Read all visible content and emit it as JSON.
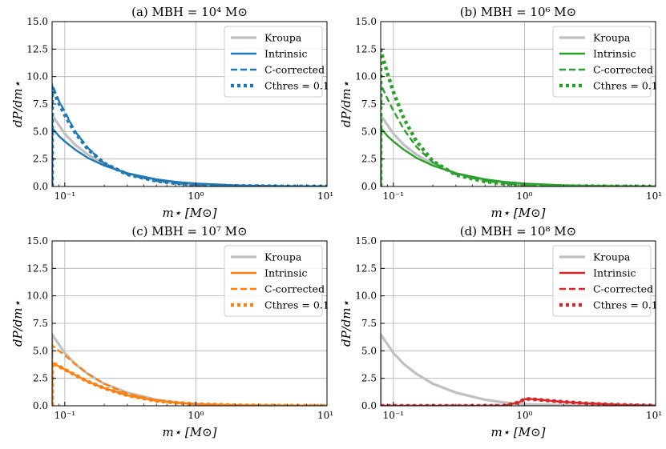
{
  "figure": {
    "ylabel": "dP/dm⋆",
    "xlabel": "m⋆ [M⊙]",
    "x_tick_labels": [
      "10⁻¹",
      "10⁰",
      "10¹"
    ],
    "y_tick_labels": [
      "0.0",
      "2.5",
      "5.0",
      "7.5",
      "10.0",
      "12.5",
      "15.0"
    ],
    "colors": {
      "kroupa": "#c0c0c0",
      "blue": "#1f77b4",
      "green": "#2ca02c",
      "orange": "#ff7f0e",
      "red": "#d62728"
    },
    "legend_labels": [
      "Kroupa",
      "Intrinsic",
      "C-corrected",
      "Cthres = 0.1"
    ]
  },
  "chart_data": [
    {
      "type": "line",
      "title": "(a) MBH = 10⁴ M⊙",
      "xscale": "log",
      "xlim": [
        0.08,
        10
      ],
      "ylim": [
        0,
        15
      ],
      "grid": true,
      "legend": "top-right",
      "color": "#1f77b4",
      "x": [
        0.08,
        0.09,
        0.1,
        0.12,
        0.15,
        0.2,
        0.3,
        0.5,
        0.7,
        1,
        2,
        5,
        10
      ],
      "series": [
        {
          "name": "Kroupa",
          "values": [
            6.5,
            5.6,
            4.8,
            3.8,
            2.9,
            2.0,
            1.2,
            0.55,
            0.3,
            0.15,
            0.05,
            0.01,
            0.0
          ]
        },
        {
          "name": "Intrinsic",
          "values": [
            5.3,
            4.6,
            4.1,
            3.35,
            2.6,
            1.9,
            1.2,
            0.65,
            0.42,
            0.27,
            0.1,
            0.02,
            0.0
          ]
        },
        {
          "name": "C-corrected",
          "values": [
            9.3,
            7.8,
            6.8,
            5.0,
            3.5,
            2.1,
            1.1,
            0.5,
            0.3,
            0.15,
            0.05,
            0.01,
            0.0
          ]
        },
        {
          "name": "Cthres = 0.1",
          "values": [
            9.0,
            7.6,
            6.5,
            4.9,
            3.4,
            2.1,
            1.1,
            0.5,
            0.3,
            0.15,
            0.05,
            0.01,
            0.0
          ]
        }
      ]
    },
    {
      "type": "line",
      "title": "(b) MBH = 10⁶ M⊙",
      "xscale": "log",
      "xlim": [
        0.08,
        10
      ],
      "ylim": [
        0,
        15
      ],
      "grid": true,
      "legend": "top-right",
      "color": "#2ca02c",
      "x": [
        0.08,
        0.09,
        0.1,
        0.12,
        0.15,
        0.2,
        0.3,
        0.5,
        0.7,
        1,
        2,
        5,
        10
      ],
      "series": [
        {
          "name": "Kroupa",
          "values": [
            6.5,
            5.6,
            4.8,
            3.8,
            2.9,
            2.0,
            1.2,
            0.55,
            0.3,
            0.15,
            0.05,
            0.01,
            0.0
          ]
        },
        {
          "name": "Intrinsic",
          "values": [
            5.3,
            4.6,
            4.1,
            3.35,
            2.6,
            1.9,
            1.2,
            0.65,
            0.42,
            0.27,
            0.1,
            0.02,
            0.0
          ]
        },
        {
          "name": "C-corrected",
          "values": [
            9.3,
            8.0,
            6.9,
            5.2,
            3.6,
            2.2,
            1.1,
            0.5,
            0.3,
            0.15,
            0.05,
            0.01,
            0.0
          ]
        },
        {
          "name": "Cthres = 0.1",
          "values": [
            12.4,
            10.3,
            8.6,
            6.2,
            4.1,
            2.3,
            1.05,
            0.45,
            0.25,
            0.12,
            0.04,
            0.01,
            0.0
          ]
        }
      ]
    },
    {
      "type": "line",
      "title": "(c) MBH = 10⁷ M⊙",
      "xscale": "log",
      "xlim": [
        0.08,
        10
      ],
      "ylim": [
        0,
        15
      ],
      "grid": true,
      "legend": "top-right",
      "color": "#ff7f0e",
      "x": [
        0.08,
        0.09,
        0.1,
        0.12,
        0.15,
        0.2,
        0.3,
        0.5,
        0.7,
        1,
        2,
        5,
        10
      ],
      "series": [
        {
          "name": "Kroupa",
          "values": [
            6.5,
            5.6,
            4.8,
            3.8,
            2.9,
            2.0,
            1.2,
            0.55,
            0.3,
            0.15,
            0.05,
            0.01,
            0.0
          ]
        },
        {
          "name": "Intrinsic",
          "values": [
            3.9,
            3.6,
            3.3,
            2.8,
            2.2,
            1.6,
            0.95,
            0.45,
            0.28,
            0.15,
            0.05,
            0.01,
            0.0
          ]
        },
        {
          "name": "C-corrected",
          "values": [
            5.5,
            5.0,
            4.6,
            3.8,
            2.9,
            2.0,
            1.1,
            0.5,
            0.3,
            0.15,
            0.05,
            0.01,
            0.0
          ]
        },
        {
          "name": "Cthres = 0.1",
          "values": [
            3.9,
            3.6,
            3.3,
            2.8,
            2.2,
            1.6,
            0.95,
            0.45,
            0.28,
            0.15,
            0.05,
            0.01,
            0.0
          ]
        }
      ]
    },
    {
      "type": "line",
      "title": "(d) MBH = 10⁸ M⊙",
      "xscale": "log",
      "xlim": [
        0.08,
        10
      ],
      "ylim": [
        0,
        15
      ],
      "grid": true,
      "legend": "top-right",
      "color": "#d62728",
      "x": [
        0.08,
        0.09,
        0.1,
        0.12,
        0.15,
        0.2,
        0.3,
        0.5,
        0.7,
        0.9,
        1.0,
        1.1,
        1.3,
        1.6,
        2,
        3,
        5,
        7,
        10
      ],
      "series": [
        {
          "name": "Kroupa",
          "values": [
            6.5,
            5.6,
            4.8,
            3.8,
            2.9,
            2.0,
            1.2,
            0.55,
            0.3,
            0.18,
            0.15,
            0.13,
            0.1,
            0.08,
            0.05,
            0.03,
            0.01,
            0.005,
            0.0
          ]
        },
        {
          "name": "Intrinsic",
          "values": [
            0,
            0,
            0,
            0,
            0,
            0,
            0,
            0,
            0,
            0.3,
            0.6,
            0.62,
            0.55,
            0.45,
            0.35,
            0.22,
            0.1,
            0.05,
            0.02
          ]
        },
        {
          "name": "C-corrected",
          "values": [
            0,
            0,
            0,
            0,
            0,
            0,
            0,
            0,
            0,
            0.3,
            0.6,
            0.62,
            0.55,
            0.45,
            0.35,
            0.22,
            0.1,
            0.05,
            0.02
          ]
        },
        {
          "name": "Cthres = 0.1",
          "values": [
            0,
            0,
            0,
            0,
            0,
            0,
            0,
            0,
            0,
            0.3,
            0.6,
            0.62,
            0.55,
            0.45,
            0.35,
            0.22,
            0.1,
            0.05,
            0.02
          ]
        }
      ]
    }
  ]
}
